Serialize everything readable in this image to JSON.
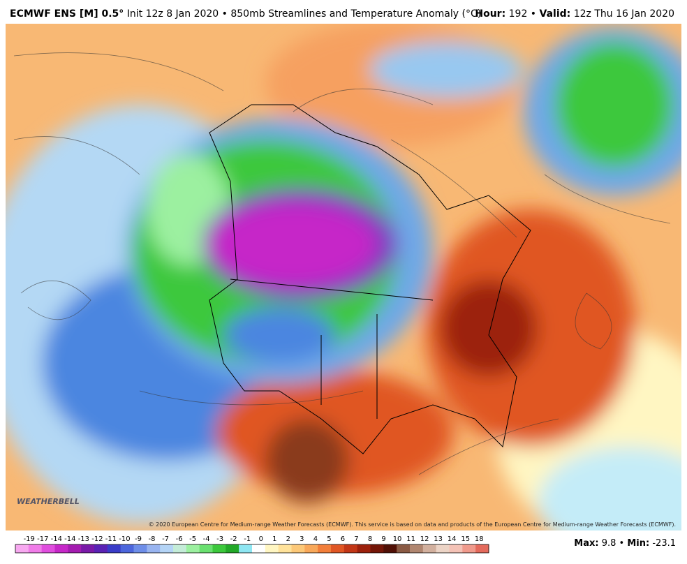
{
  "header": {
    "model": "ECMWF ENS [M] 0.5°",
    "description": "Init 12z 8 Jan 2020 • 850mb Streamlines and Temperature Anomaly (°C)",
    "hour_label": "Hour:",
    "hour": "192 •",
    "valid_label": "Valid:",
    "valid": "12z Thu 16 Jan 2020"
  },
  "map": {
    "logo": "WEATHERBELL",
    "copyright": "© 2020 European Centre for Medium-range Weather Forecasts (ECMWF). This service is based on data and products of the European Centre for Medium-range Weather Forecasts (ECMWF)."
  },
  "colorbar": {
    "labels": [
      "-19",
      "-17",
      "-14",
      "-14",
      "-13",
      "-12",
      "-11",
      "-10",
      "-9",
      "-8",
      "-7",
      "-6",
      "-5",
      "-4",
      "-3",
      "-2",
      "-1",
      "0",
      "1",
      "2",
      "3",
      "4",
      "5",
      "6",
      "7",
      "8",
      "9",
      "10",
      "11",
      "12",
      "13",
      "14",
      "15",
      "18"
    ],
    "colors": [
      "#f7a8f0",
      "#f07ce8",
      "#e04ede",
      "#c628c8",
      "#a41cb0",
      "#7a1aa8",
      "#5a22b4",
      "#3a3cc8",
      "#4c66dc",
      "#6e8ee8",
      "#98b4f0",
      "#b4d4f6",
      "#c4ecd8",
      "#9cf0a0",
      "#6ae070",
      "#3cc83c",
      "#22a828",
      "#8ee6f2",
      "#ffffff",
      "#fff6c2",
      "#ffe29a",
      "#fcc878",
      "#f8a85a",
      "#f27e3a",
      "#e05624",
      "#c23616",
      "#9c200c",
      "#741608",
      "#501006",
      "#8a5a44",
      "#b08670",
      "#d2b09e",
      "#ecd4c6",
      "#f4c2b6",
      "#f09a8c",
      "#e46a5c"
    ]
  },
  "stats": {
    "max_label": "Max:",
    "max": "9.8",
    "separator": "•",
    "min_label": "Min:",
    "min": "-23.1"
  }
}
